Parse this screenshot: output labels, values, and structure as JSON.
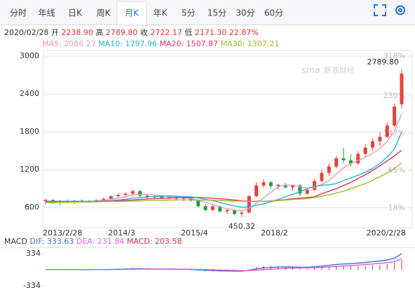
{
  "tabs": [
    "分时",
    "年线",
    "日K",
    "周K",
    "月K",
    "年K",
    "5分",
    "15分",
    "30分",
    "60分"
  ],
  "active_tab": 4,
  "quote": {
    "date": "2020/02/28",
    "items": [
      {
        "label": "开",
        "value": "2238.90"
      },
      {
        "label": "高",
        "value": "2789.80"
      },
      {
        "label": "收",
        "value": "2722.17"
      },
      {
        "label": "低",
        "value": "2171.30"
      }
    ],
    "change": "22.87%"
  },
  "watermark": {
    "logo": "sina",
    "text": "新浪财经"
  },
  "chart_data": [
    {
      "type": "candlestick",
      "up_color": "#e8413b",
      "down_color": "#1e9c48",
      "grid": true,
      "ylim": [
        280,
        3090
      ],
      "yticks": [
        600,
        1200,
        1800,
        2400,
        3000
      ],
      "y2lim": [
        -61,
        330.5
      ],
      "y2ticks": [
        {
          "value": 318,
          "label": "318%"
        },
        {
          "value": 230,
          "label": "230%"
        },
        {
          "value": 147,
          "label": "147%"
        },
        {
          "value": 65,
          "label": "65%"
        },
        {
          "value": -18,
          "label": "-18%"
        }
      ],
      "xlim": [
        0,
        49
      ],
      "xticks": [
        {
          "value": 0,
          "label": "2013/2/28"
        },
        {
          "value": 9,
          "label": "2014/3"
        },
        {
          "value": 19,
          "label": "2015/4"
        },
        {
          "value": 30,
          "label": "2018/2"
        },
        {
          "value": 49,
          "label": "2020/2/28"
        }
      ],
      "max_label": {
        "value": 2789.8,
        "label": "2789.80"
      },
      "min_label": {
        "value": 450.32,
        "label": "450.32"
      },
      "ohlc": [
        [
          700,
          740,
          650,
          720
        ],
        [
          720,
          730,
          660,
          680
        ],
        [
          680,
          720,
          640,
          700
        ],
        [
          700,
          730,
          670,
          690
        ],
        [
          690,
          720,
          660,
          710
        ],
        [
          710,
          730,
          680,
          700
        ],
        [
          700,
          720,
          670,
          690
        ],
        [
          690,
          730,
          680,
          720
        ],
        [
          720,
          760,
          700,
          740
        ],
        [
          740,
          790,
          720,
          780
        ],
        [
          780,
          820,
          760,
          800
        ],
        [
          800,
          840,
          770,
          820
        ],
        [
          820,
          880,
          800,
          860
        ],
        [
          860,
          880,
          770,
          790
        ],
        [
          790,
          820,
          740,
          760
        ],
        [
          760,
          800,
          730,
          780
        ],
        [
          780,
          800,
          740,
          750
        ],
        [
          750,
          790,
          730,
          770
        ],
        [
          770,
          790,
          720,
          740
        ],
        [
          740,
          780,
          700,
          760
        ],
        [
          760,
          770,
          690,
          710
        ],
        [
          710,
          730,
          600,
          620
        ],
        [
          620,
          650,
          540,
          560
        ],
        [
          560,
          640,
          550,
          620
        ],
        [
          620,
          630,
          520,
          540
        ],
        [
          540,
          580,
          500,
          560
        ],
        [
          560,
          570,
          480,
          500
        ],
        [
          500,
          540,
          450.32,
          520
        ],
        [
          520,
          800,
          510,
          780
        ],
        [
          780,
          1000,
          760,
          950
        ],
        [
          950,
          1050,
          920,
          1000
        ],
        [
          1000,
          1020,
          900,
          940
        ],
        [
          940,
          980,
          880,
          960
        ],
        [
          960,
          990,
          900,
          920
        ],
        [
          920,
          960,
          870,
          950
        ],
        [
          950,
          970,
          780,
          820
        ],
        [
          820,
          900,
          800,
          880
        ],
        [
          880,
          1050,
          860,
          1020
        ],
        [
          1020,
          1200,
          1000,
          1150
        ],
        [
          1150,
          1300,
          1100,
          1250
        ],
        [
          1250,
          1420,
          1220,
          1380
        ],
        [
          1380,
          1550,
          1300,
          1350
        ],
        [
          1350,
          1450,
          1250,
          1300
        ],
        [
          1300,
          1500,
          1280,
          1450
        ],
        [
          1450,
          1600,
          1400,
          1550
        ],
        [
          1550,
          1700,
          1500,
          1650
        ],
        [
          1650,
          1800,
          1580,
          1720
        ],
        [
          1720,
          1950,
          1700,
          1900
        ],
        [
          1900,
          2250,
          1880,
          2200
        ],
        [
          2238.9,
          2789.8,
          2171.3,
          2722.17
        ]
      ],
      "series": [
        {
          "name": "MA5:",
          "color": "#f096b0",
          "values": [
            700,
            700,
            700,
            695,
            700,
            695,
            700,
            705,
            715,
            730,
            750,
            770,
            800,
            810,
            810,
            800,
            790,
            770,
            760,
            760,
            745,
            715,
            680,
            650,
            610,
            580,
            560,
            550,
            585,
            670,
            750,
            840,
            930,
            955,
            955,
            930,
            910,
            920,
            965,
            1025,
            1135,
            1230,
            1300,
            1345,
            1395,
            1460,
            1535,
            1650,
            1805,
            2086.27
          ]
        },
        {
          "name": "MA10:",
          "color": "#27b4d2",
          "values": [
            700,
            700,
            700,
            700,
            700,
            700,
            700,
            700,
            705,
            710,
            720,
            730,
            750,
            760,
            770,
            775,
            780,
            785,
            780,
            775,
            770,
            755,
            730,
            710,
            680,
            650,
            625,
            605,
            610,
            635,
            660,
            690,
            730,
            770,
            810,
            850,
            900,
            935,
            955,
            960,
            980,
            1030,
            1070,
            1110,
            1160,
            1220,
            1300,
            1400,
            1530,
            1797.96
          ]
        },
        {
          "name": "MA20:",
          "color": "#dd3566",
          "values": [
            690,
            690,
            690,
            690,
            690,
            690,
            690,
            695,
            700,
            705,
            710,
            715,
            720,
            730,
            735,
            740,
            745,
            750,
            755,
            760,
            760,
            760,
            755,
            745,
            740,
            730,
            720,
            705,
            700,
            700,
            700,
            705,
            715,
            725,
            740,
            750,
            760,
            770,
            820,
            860,
            900,
            950,
            1000,
            1060,
            1120,
            1190,
            1260,
            1340,
            1420,
            1507.87
          ]
        },
        {
          "name": "MA30:",
          "color": "#9ebd22",
          "values": [
            680,
            680,
            682,
            684,
            686,
            688,
            690,
            692,
            694,
            696,
            698,
            700,
            703,
            706,
            709,
            712,
            715,
            718,
            720,
            722,
            722,
            720,
            718,
            715,
            712,
            708,
            704,
            700,
            698,
            698,
            700,
            704,
            710,
            718,
            728,
            735,
            740,
            760,
            780,
            800,
            830,
            860,
            900,
            940,
            980,
            1030,
            1090,
            1150,
            1220,
            1307.21
          ]
        }
      ]
    },
    {
      "type": "macd",
      "title": "MACD",
      "ylim": [
        -334,
        334
      ],
      "yticks": [
        334,
        -334
      ],
      "xlim": [
        0,
        49
      ],
      "series": [
        {
          "name": "DIF:",
          "color": "#3b6fd9",
          "values": [
            5,
            5,
            4,
            3,
            3,
            2,
            2,
            3,
            5,
            8,
            12,
            16,
            22,
            22,
            20,
            18,
            16,
            14,
            12,
            10,
            6,
            -2,
            -12,
            -16,
            -22,
            -24,
            -28,
            -30,
            -10,
            20,
            40,
            50,
            56,
            58,
            60,
            52,
            52,
            62,
            76,
            92,
            110,
            120,
            126,
            138,
            152,
            168,
            182,
            204,
            240,
            333.63
          ]
        },
        {
          "name": "DEA:",
          "color": "#df5fdf",
          "values": [
            4,
            4,
            4,
            4,
            3,
            3,
            3,
            3,
            3,
            4,
            6,
            8,
            11,
            13,
            15,
            15,
            15,
            15,
            14,
            13,
            12,
            9,
            5,
            1,
            -4,
            -8,
            -13,
            -17,
            -16,
            -9,
            1,
            11,
            20,
            28,
            34,
            38,
            41,
            45,
            51,
            59,
            69,
            79,
            88,
            98,
            109,
            120,
            133,
            147,
            166,
            231.84
          ]
        },
        {
          "name": "MACD:",
          "color": "#d8323a",
          "bars": true,
          "values": [
            2,
            2,
            0,
            -2,
            0,
            -2,
            -2,
            0,
            4,
            8,
            12,
            16,
            22,
            18,
            10,
            6,
            2,
            -2,
            -4,
            -6,
            -12,
            -22,
            -34,
            -34,
            -36,
            -32,
            -30,
            -26,
            12,
            58,
            78,
            78,
            72,
            60,
            52,
            28,
            22,
            34,
            50,
            66,
            82,
            82,
            76,
            80,
            86,
            96,
            98,
            114,
            148,
            203.58
          ]
        }
      ]
    }
  ]
}
